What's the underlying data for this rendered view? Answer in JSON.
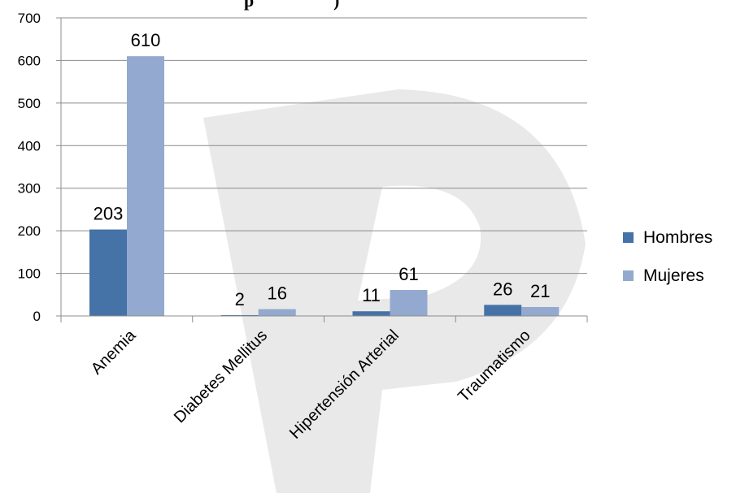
{
  "chart_data": {
    "type": "bar",
    "title_fragment": "p",
    "title_fragment_2": ")",
    "categories": [
      "Anemia",
      "Diabetes Mellitus",
      "Hipertensión Arterial",
      "Traumatismo"
    ],
    "series": [
      {
        "name": "Hombres",
        "values": [
          203,
          2,
          11,
          26
        ],
        "color": "#4572a7"
      },
      {
        "name": "Mujeres",
        "values": [
          610,
          16,
          61,
          21
        ],
        "color": "#93a9cf"
      }
    ],
    "ylim": [
      0,
      700
    ],
    "yticks": [
      0,
      100,
      200,
      300,
      400,
      500,
      600,
      700
    ],
    "grid": true,
    "legend": "right"
  }
}
